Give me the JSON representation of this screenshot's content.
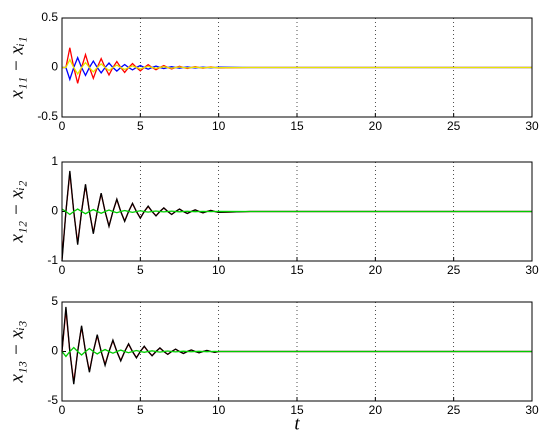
{
  "chart_data": [
    {
      "type": "line",
      "ylabel": "x₁₁ − xᵢ₁",
      "xlim": [
        0,
        30
      ],
      "ylim": [
        -0.5,
        0.5
      ],
      "xticks": [
        0,
        5,
        10,
        15,
        20,
        25,
        30
      ],
      "yticks": [
        -0.5,
        0,
        0.5
      ],
      "grid": "x",
      "x": [
        0,
        0.25,
        0.5,
        0.75,
        1,
        1.25,
        1.5,
        1.75,
        2,
        2.25,
        2.5,
        2.75,
        3,
        3.25,
        3.5,
        3.75,
        4,
        4.25,
        4.5,
        4.75,
        5,
        5.25,
        5.5,
        5.75,
        6,
        6.25,
        6.5,
        6.75,
        7,
        7.25,
        7.5,
        7.75,
        8,
        8.25,
        8.5,
        8.75,
        9,
        9.25,
        9.5,
        9.75,
        10,
        12,
        15,
        20,
        25,
        30
      ],
      "series": [
        {
          "color": "#ff0000",
          "values": [
            0,
            0,
            0.2,
            0,
            -0.16,
            0,
            0.13,
            0,
            -0.11,
            0,
            0.09,
            0,
            -0.075,
            0,
            0.06,
            0,
            -0.05,
            0,
            0.04,
            0,
            -0.034,
            0,
            0.028,
            0,
            -0.023,
            0,
            0.019,
            0,
            -0.015,
            0,
            0.012,
            0,
            -0.01,
            0,
            0.008,
            0,
            -0.007,
            0,
            0.006,
            0,
            -0.005,
            0,
            0,
            0,
            0,
            0
          ]
        },
        {
          "color": "#0000ff",
          "values": [
            0,
            0,
            -0.12,
            0,
            0.1,
            0,
            -0.08,
            0,
            0.065,
            0,
            -0.055,
            0,
            0.045,
            0,
            -0.036,
            0,
            0.03,
            0,
            -0.024,
            0,
            0.02,
            0,
            -0.017,
            0,
            0.014,
            0,
            -0.011,
            0,
            0.009,
            0,
            -0.007,
            0,
            0.006,
            0,
            -0.005,
            0,
            0.004,
            0,
            -0.004,
            0,
            0.003,
            0,
            0,
            0,
            0,
            0
          ]
        },
        {
          "color": "#e6e600",
          "values": [
            0,
            0,
            0.08,
            0,
            -0.065,
            0,
            0.05,
            0,
            -0.045,
            0,
            0.036,
            0,
            -0.03,
            0,
            0.024,
            0,
            -0.02,
            0,
            0.016,
            0,
            -0.014,
            0,
            0.011,
            0,
            -0.009,
            0,
            0.008,
            0,
            -0.006,
            0,
            0.005,
            0,
            -0.004,
            0,
            0.003,
            0,
            -0.003,
            0,
            0.002,
            0,
            -0.002,
            0,
            0,
            0,
            0,
            0
          ]
        }
      ]
    },
    {
      "type": "line",
      "ylabel": "x₁₂ − xᵢ₂",
      "xlim": [
        0,
        30
      ],
      "ylim": [
        -1,
        1
      ],
      "xticks": [
        0,
        5,
        10,
        15,
        20,
        25,
        30
      ],
      "yticks": [
        -1,
        0,
        1
      ],
      "grid": "x",
      "x": [
        0,
        0.25,
        0.5,
        0.75,
        1,
        1.25,
        1.5,
        1.75,
        2,
        2.25,
        2.5,
        2.75,
        3,
        3.25,
        3.5,
        3.75,
        4,
        4.25,
        4.5,
        4.75,
        5,
        5.25,
        5.5,
        5.75,
        6,
        6.25,
        6.5,
        6.75,
        7,
        7.25,
        7.5,
        7.75,
        8,
        8.25,
        8.5,
        8.75,
        9,
        9.25,
        9.5,
        9.75,
        10,
        12,
        15,
        20,
        25,
        30
      ],
      "series": [
        {
          "color": "#ff0000",
          "values": [
            -0.95,
            0,
            0.78,
            0,
            -0.64,
            0,
            0.53,
            0,
            -0.43,
            0,
            0.36,
            0,
            -0.29,
            0,
            0.24,
            0,
            -0.19,
            0,
            0.16,
            0,
            -0.13,
            0,
            0.1,
            0,
            -0.085,
            0,
            0.07,
            0,
            -0.058,
            0,
            0.048,
            0,
            -0.039,
            0,
            0.032,
            0,
            -0.026,
            0,
            0.021,
            0,
            -0.017,
            0,
            0,
            0,
            0,
            0
          ]
        },
        {
          "color": "#000000",
          "values": [
            -1,
            0,
            0.82,
            0,
            -0.67,
            0,
            0.55,
            0,
            -0.45,
            0,
            0.37,
            0,
            -0.3,
            0,
            0.25,
            0,
            -0.2,
            0,
            0.165,
            0,
            -0.135,
            0,
            0.11,
            0,
            -0.09,
            0,
            0.074,
            0,
            -0.06,
            0,
            0.05,
            0,
            -0.04,
            0,
            0.033,
            0,
            -0.027,
            0,
            0.022,
            0,
            -0.018,
            0,
            0,
            0,
            0,
            0
          ]
        },
        {
          "color": "#00cc00",
          "values": [
            0.05,
            0,
            -0.06,
            0,
            0.05,
            0,
            -0.045,
            0,
            0.04,
            0,
            -0.035,
            0,
            0.03,
            0,
            -0.025,
            0,
            0.02,
            0,
            -0.018,
            0,
            0.015,
            0,
            -0.012,
            0,
            0.01,
            0,
            -0.008,
            0,
            0.007,
            0,
            -0.006,
            0,
            0.005,
            0,
            -0.004,
            0,
            0.003,
            0,
            -0.003,
            0,
            0.002,
            0,
            0,
            0,
            0,
            0
          ]
        }
      ]
    },
    {
      "type": "line",
      "ylabel": "x₁₃ − xᵢ₃",
      "xlabel": "t",
      "xlim": [
        0,
        30
      ],
      "ylim": [
        -5,
        5
      ],
      "xticks": [
        0,
        5,
        10,
        15,
        20,
        25,
        30
      ],
      "yticks": [
        -5,
        0,
        5
      ],
      "grid": "x",
      "x": [
        0,
        0.25,
        0.5,
        0.75,
        1,
        1.25,
        1.5,
        1.75,
        2,
        2.25,
        2.5,
        2.75,
        3,
        3.25,
        3.5,
        3.75,
        4,
        4.25,
        4.5,
        4.75,
        5,
        5.25,
        5.5,
        5.75,
        6,
        6.25,
        6.5,
        6.75,
        7,
        7.25,
        7.5,
        7.75,
        8,
        8.25,
        8.5,
        8.75,
        9,
        9.25,
        9.5,
        9.75,
        10,
        12,
        15,
        20,
        25,
        30
      ],
      "series": [
        {
          "color": "#ff0000",
          "values": [
            0,
            4.2,
            0,
            -3.1,
            0,
            2.5,
            0,
            -2,
            0,
            1.6,
            0,
            -1.3,
            0,
            1.1,
            0,
            -0.9,
            0,
            0.74,
            0,
            -0.6,
            0,
            0.5,
            0,
            -0.41,
            0,
            0.34,
            0,
            -0.28,
            0,
            0.23,
            0,
            -0.19,
            0,
            0.15,
            0,
            -0.12,
            0,
            0.1,
            0,
            -0.08,
            0,
            0,
            0,
            0,
            0,
            0
          ]
        },
        {
          "color": "#000000",
          "values": [
            0,
            4.5,
            0,
            -3.3,
            0,
            2.6,
            0,
            -2.1,
            0,
            1.7,
            0,
            -1.4,
            0,
            1.15,
            0,
            -0.95,
            0,
            0.78,
            0,
            -0.64,
            0,
            0.53,
            0,
            -0.43,
            0,
            0.36,
            0,
            -0.29,
            0,
            0.24,
            0,
            -0.2,
            0,
            0.16,
            0,
            -0.13,
            0,
            0.11,
            0,
            -0.09,
            0,
            0,
            0,
            0,
            0,
            0
          ]
        },
        {
          "color": "#00cc00",
          "values": [
            0,
            -0.5,
            0,
            0.4,
            0,
            -0.35,
            0,
            0.3,
            0,
            -0.25,
            0,
            0.2,
            0,
            -0.17,
            0,
            0.14,
            0,
            -0.12,
            0,
            0.1,
            0,
            -0.08,
            0,
            0.07,
            0,
            -0.06,
            0,
            0.05,
            0,
            -0.04,
            0,
            0.03,
            0,
            -0.025,
            0,
            0.02,
            0,
            -0.017,
            0,
            0.014,
            0,
            0,
            0,
            0,
            0,
            0
          ]
        }
      ]
    }
  ]
}
